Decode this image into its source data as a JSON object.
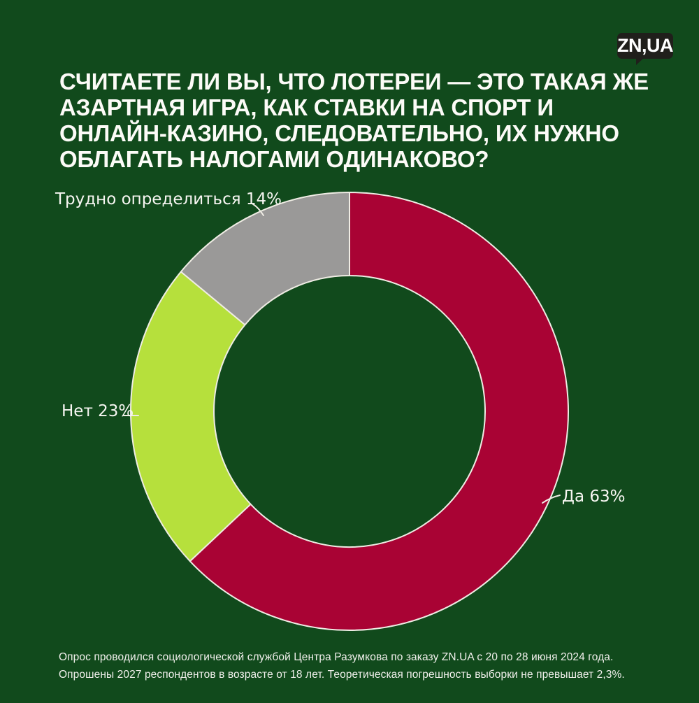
{
  "page": {
    "background_color": "#114A1C",
    "title_color": "#FCFBF7",
    "label_color": "#F7F6F2",
    "footnote_color": "#F1F0EC"
  },
  "logo": {
    "text": "ZN,UA",
    "background_color": "#201F1B",
    "text_color": "#FFFFFF"
  },
  "title": {
    "text": "СЧИТАЕТЕ ЛИ ВЫ, ЧТО ЛОТЕРЕИ — ЭТО ТАКАЯ ЖЕ АЗАРТНАЯ ИГРА, КАК СТАВКИ НА СПОРТ И ОНЛАЙН-КАЗИНО, СЛЕДОВАТЕЛЬНО, ИХ НУЖНО ОБЛАГАТЬ НАЛОГАМИ ОДИНАКОВО?"
  },
  "chart_data": {
    "type": "pie",
    "style": "donut",
    "title": "Считаете ли вы, что лотереи — это такая же азартная игра, как ставки на спорт и онлайн-казино, следовательно, их нужно облагать налогами одинаково?",
    "start_angle": "top",
    "direction": "clockwise",
    "inner_radius_ratio": 0.62,
    "separator_color": "#EFECE4",
    "legend_position": "callout-labels",
    "slices": [
      {
        "key": "da",
        "label": "Да",
        "value": 63,
        "display": "Да 63%",
        "color": "#A90334"
      },
      {
        "key": "net",
        "label": "Нет",
        "value": 23,
        "display": "Нет 23%",
        "color": "#B6E03C"
      },
      {
        "key": "trudno",
        "label": "Трудно определиться",
        "value": 14,
        "display": "Трудно определиться 14%",
        "color": "#9A9998"
      }
    ]
  },
  "footnote": {
    "lines": [
      "Опрос проводился социологической службой Центра Разумкова по заказу ZN.UA с 20 по 28 июня 2024 года.",
      "Опрошены 2027 респондентов в возрасте от 18 лет. Теоретическая погрешность выборки не превышает 2,3%."
    ]
  }
}
